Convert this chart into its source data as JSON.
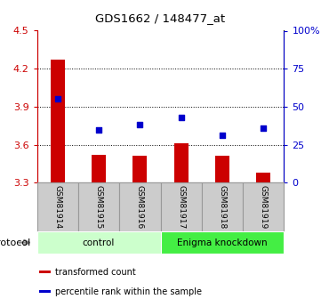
{
  "title": "GDS1662 / 148477_at",
  "samples": [
    "GSM81914",
    "GSM81915",
    "GSM81916",
    "GSM81917",
    "GSM81918",
    "GSM81919"
  ],
  "red_values": [
    4.27,
    3.52,
    3.51,
    3.61,
    3.51,
    3.38
  ],
  "blue_percentiles": [
    55,
    35,
    38,
    43,
    31,
    36
  ],
  "ylim_left": [
    3.3,
    4.5
  ],
  "ylim_right": [
    0,
    100
  ],
  "yticks_left": [
    3.3,
    3.6,
    3.9,
    4.2,
    4.5
  ],
  "yticks_right": [
    0,
    25,
    50,
    75,
    100
  ],
  "ytick_labels_right": [
    "0",
    "25",
    "50",
    "75",
    "100%"
  ],
  "bar_color": "#cc0000",
  "dot_color": "#0000cc",
  "bar_bottom": 3.3,
  "protocol_groups": [
    {
      "label": "control",
      "start": 0,
      "end": 3,
      "color": "#ccffcc"
    },
    {
      "label": "Enigma knockdown",
      "start": 3,
      "end": 6,
      "color": "#44ee44"
    }
  ],
  "protocol_label": "protocol",
  "legend_items": [
    {
      "label": "transformed count",
      "color": "#cc0000"
    },
    {
      "label": "percentile rank within the sample",
      "color": "#0000cc"
    }
  ],
  "tick_label_color_left": "#cc0000",
  "tick_label_color_right": "#0000cc",
  "bar_width": 0.35,
  "sample_box_color": "#cccccc",
  "sample_box_edge": "#999999"
}
